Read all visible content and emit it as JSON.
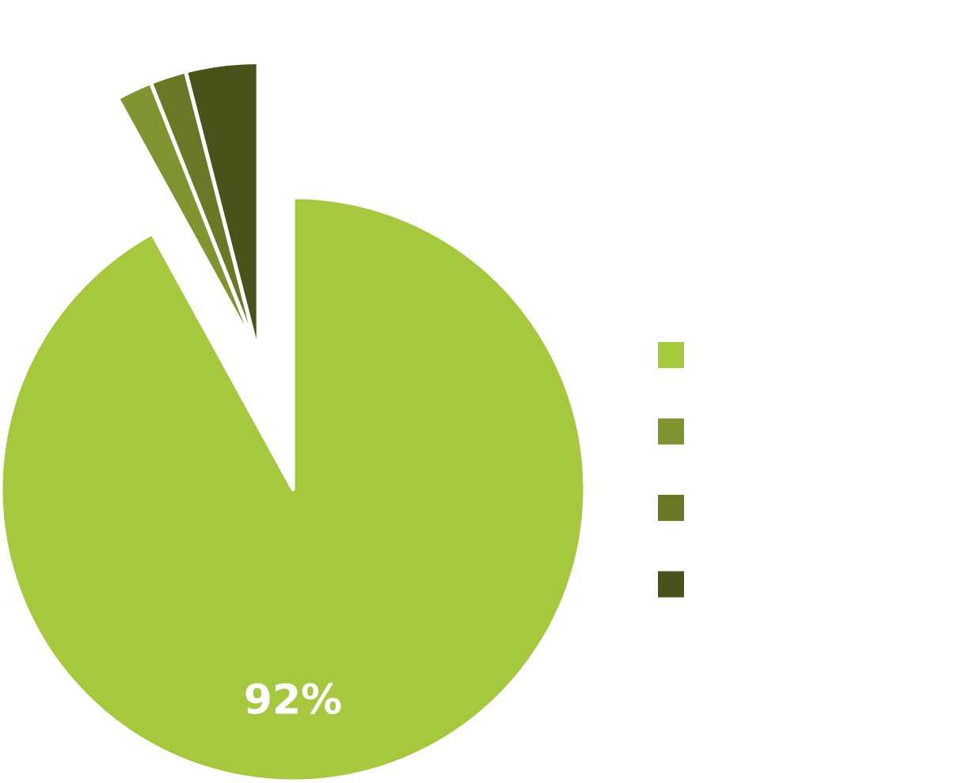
{
  "chart_data": {
    "type": "pie",
    "categories": [
      null,
      null,
      null,
      null
    ],
    "values": [
      92,
      2,
      2,
      4
    ],
    "value_labels": [
      "92%",
      null,
      null,
      null
    ],
    "colors": [
      "#a6c83e",
      "#7e9532",
      "#687827",
      "#48521b"
    ],
    "legend": "right"
  }
}
